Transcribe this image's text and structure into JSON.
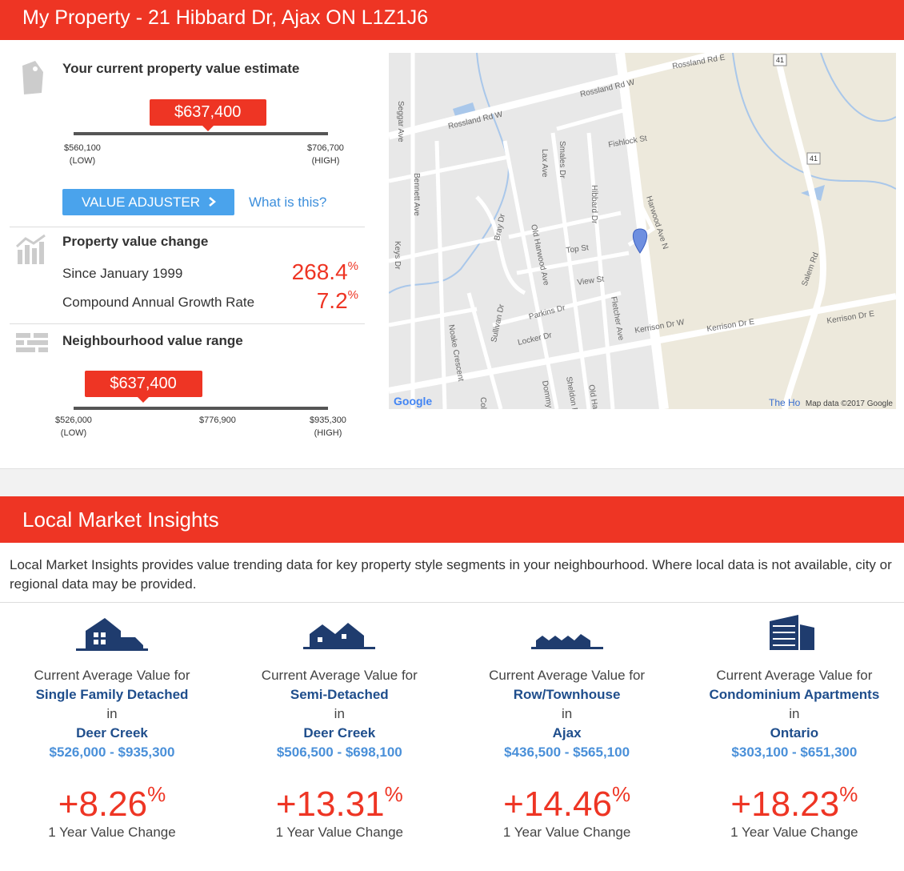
{
  "header": {
    "title": "My Property - 21 Hibbard Dr, Ajax ON L1Z1J6"
  },
  "estimate": {
    "heading": "Your current property value estimate",
    "marker": {
      "value": 637400,
      "label": "$637,400"
    },
    "low": {
      "value": 560100,
      "label": "$560,100",
      "note": "(LOW)"
    },
    "high": {
      "value": 706700,
      "label": "$706,700",
      "note": "(HIGH)"
    }
  },
  "adjuster": {
    "button": "VALUE ADJUSTER",
    "link": "What is this?"
  },
  "change": {
    "heading": "Property value change",
    "rows": [
      {
        "label": "Since January 1999",
        "value": "268.4",
        "unit": "%"
      },
      {
        "label": "Compound Annual Growth Rate",
        "value": "7.2",
        "unit": "%"
      }
    ]
  },
  "neighbourhood": {
    "heading": "Neighbourhood value range",
    "marker": {
      "value": 637400,
      "label": "$637,400"
    },
    "ticks": [
      {
        "value": 526000,
        "label": "$526,000",
        "note": "(LOW)"
      },
      {
        "value": 776900,
        "label": "$776,900"
      },
      {
        "value": 935300,
        "label": "$935,300",
        "note": "(HIGH)"
      }
    ]
  },
  "map": {
    "labels": [
      "Rossland Rd E",
      "Rossland Rd W",
      "Rossland Rd W",
      "Seggar Ave",
      "Bennett Ave",
      "Lax Ave",
      "Smales Dr",
      "Fishlock St",
      "Hibbard Dr",
      "Harwood Ave N",
      "Old Harwood Ave",
      "Bray Dr",
      "Keys Dr",
      "Top St",
      "View St",
      "Fletcher Ave",
      "Noake Crescent",
      "Parkins Dr",
      "Sullivan Dr",
      "Locker Dr",
      "Kerrison Dr W",
      "Kerrison Dr E",
      "Kerrison Dr E",
      "Salem Rd",
      "Old Harwood",
      "Sheldon Dr",
      "Dommy Dr",
      "Coles",
      "41",
      "41"
    ],
    "logo": "Google",
    "place": "The Ho",
    "attribution": "Map data ©2017 Google"
  },
  "insights": {
    "title": "Local Market Insights",
    "description": "Local Market Insights provides value trending data for key property style segments in your neighbourhood. Where local data is not available, city or regional data may be provided.",
    "cards": [
      {
        "prefix": "Current Average Value for",
        "type": "Single Family Detached",
        "connector": "in",
        "location": "Deer Creek",
        "range": "$526,000 - $935,300",
        "change": "+8.26",
        "unit": "%",
        "caption": "1 Year Value Change"
      },
      {
        "prefix": "Current Average Value for",
        "type": "Semi-Detached",
        "connector": "in",
        "location": "Deer Creek",
        "range": "$506,500 - $698,100",
        "change": "+13.31",
        "unit": "%",
        "caption": "1 Year Value Change"
      },
      {
        "prefix": "Current Average Value for",
        "type": "Row/Townhouse",
        "connector": "in",
        "location": "Ajax",
        "range": "$436,500 - $565,100",
        "change": "+14.46",
        "unit": "%",
        "caption": "1 Year Value Change"
      },
      {
        "prefix": "Current Average Value for",
        "type": "Condominium Apartments",
        "connector": "in",
        "location": "Ontario",
        "range": "$303,100 - $651,300",
        "change": "+18.23",
        "unit": "%",
        "caption": "1 Year Value Change"
      }
    ]
  }
}
